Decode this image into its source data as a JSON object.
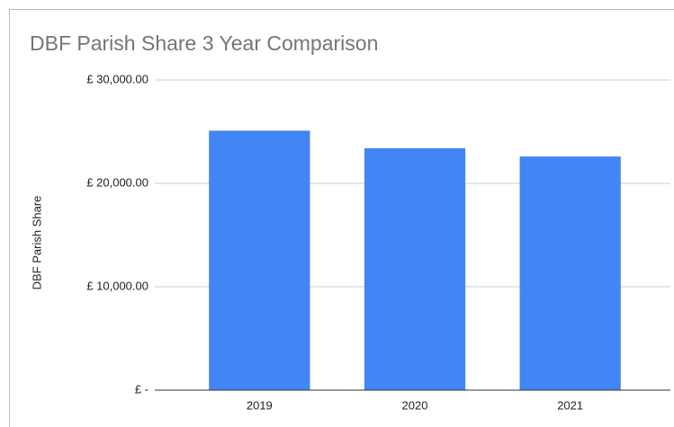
{
  "chart_data": {
    "type": "bar",
    "title": "DBF Parish Share 3 Year Comparison",
    "ylabel": "DBF Parish Share",
    "categories": [
      "2019",
      "2020",
      "2021"
    ],
    "values": [
      25100,
      23400,
      22600
    ],
    "color": "#4285f4",
    "ylim": [
      0,
      30000
    ],
    "yticks": [
      {
        "value": 0,
        "label": "£ -"
      },
      {
        "value": 10000,
        "label": "£ 10,000.00"
      },
      {
        "value": 20000,
        "label": "£ 20,000.00"
      },
      {
        "value": 30000,
        "label": "£ 30,000.00"
      }
    ],
    "grid": true
  }
}
